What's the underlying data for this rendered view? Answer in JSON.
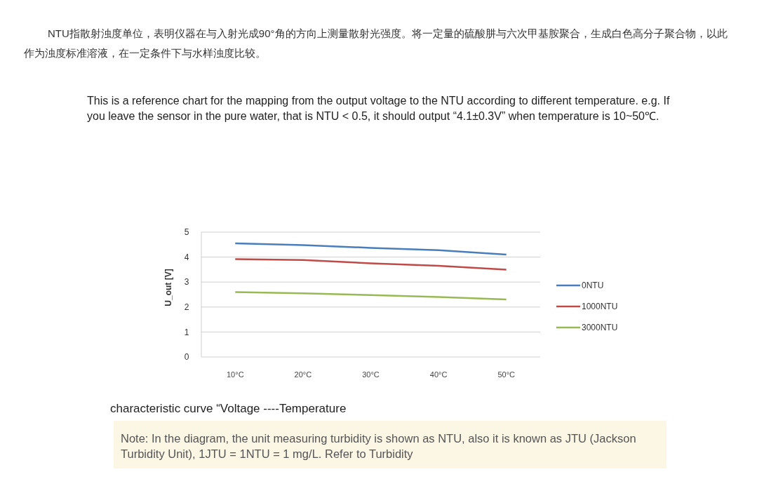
{
  "chart_data": {
    "type": "line",
    "annotations": [
      "NTU指散射浊度单位，表明仪器在与入射光成90°角的方向上测量散射光强度。将一定量的硫酸肼与六次甲基胺聚合，生成白色高分子聚合物，以此作为浊度标准溶液，在一定条件下与水样浊度比较。",
      "This is a reference chart for the mapping from the output voltage to the NTU according to different temperature. e.g. If you leave the sensor in the pure water, that is NTU < 0.5, it should output “4.1±0.3V” when temperature is 10~50℃.",
      "characteristic curve “Voltage ----Temperature",
      "Note: In the diagram, the unit measuring turbidity is shown as NTU, also it is known as JTU (Jackson Turbidity Unit), 1JTU = 1NTU = 1 mg/L. Refer to Turbidity"
    ],
    "ylabel": "U_out [V]",
    "categories": [
      "10°C",
      "20°C",
      "30°C",
      "40°C",
      "50°C"
    ],
    "series": [
      {
        "name": "0NTU",
        "color": "#4a7ebb",
        "values": [
          4.55,
          4.48,
          4.37,
          4.28,
          4.1
        ]
      },
      {
        "name": "1000NTU",
        "color": "#be4b48",
        "values": [
          3.92,
          3.88,
          3.75,
          3.65,
          3.5
        ]
      },
      {
        "name": "3000NTU",
        "color": "#98b954",
        "values": [
          2.6,
          2.55,
          2.48,
          2.4,
          2.3
        ]
      }
    ],
    "ylim": [
      0,
      5
    ],
    "yticks": [
      0,
      1,
      2,
      3,
      4,
      5
    ],
    "grid": "y",
    "legend": "right",
    "marker": "none",
    "line_style": "solid"
  }
}
